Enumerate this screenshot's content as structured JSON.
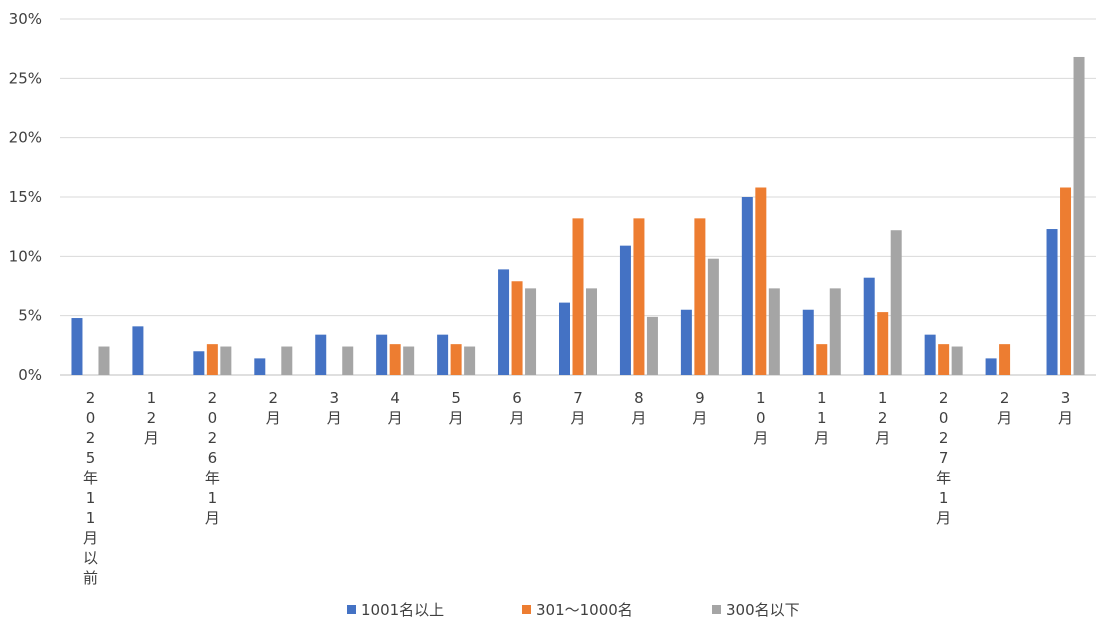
{
  "chart_data": {
    "type": "bar",
    "categories": [
      "2025年11月以前",
      "12月",
      "2026年1月",
      "2月",
      "3月",
      "4月",
      "5月",
      "6月",
      "7月",
      "8月",
      "9月",
      "10月",
      "11月",
      "12月",
      "2027年1月",
      "2月",
      "3月"
    ],
    "series": [
      {
        "name": "1001名以上",
        "color": "#4472C4",
        "values": [
          4.8,
          4.1,
          2.0,
          1.4,
          3.4,
          3.4,
          3.4,
          8.9,
          6.1,
          10.9,
          5.5,
          15.0,
          5.5,
          8.2,
          3.4,
          1.4,
          12.3
        ]
      },
      {
        "name": "301～1000名",
        "color": "#ED7D31",
        "values": [
          0,
          0,
          2.6,
          0,
          0,
          2.6,
          2.6,
          7.9,
          13.2,
          13.2,
          13.2,
          15.8,
          2.6,
          5.3,
          2.6,
          2.6,
          15.8
        ]
      },
      {
        "name": "300名以下",
        "color": "#A5A5A5",
        "values": [
          2.4,
          0,
          2.4,
          2.4,
          2.4,
          2.4,
          2.4,
          7.3,
          7.3,
          4.9,
          9.8,
          7.3,
          7.3,
          12.2,
          2.4,
          0,
          26.8
        ]
      }
    ],
    "yticks": [
      "0%",
      "5%",
      "10%",
      "15%",
      "20%",
      "25%",
      "30%"
    ],
    "ylim": [
      0,
      30
    ],
    "title": "",
    "xlabel": "",
    "ylabel": "",
    "grid": true,
    "legend_position": "bottom"
  }
}
